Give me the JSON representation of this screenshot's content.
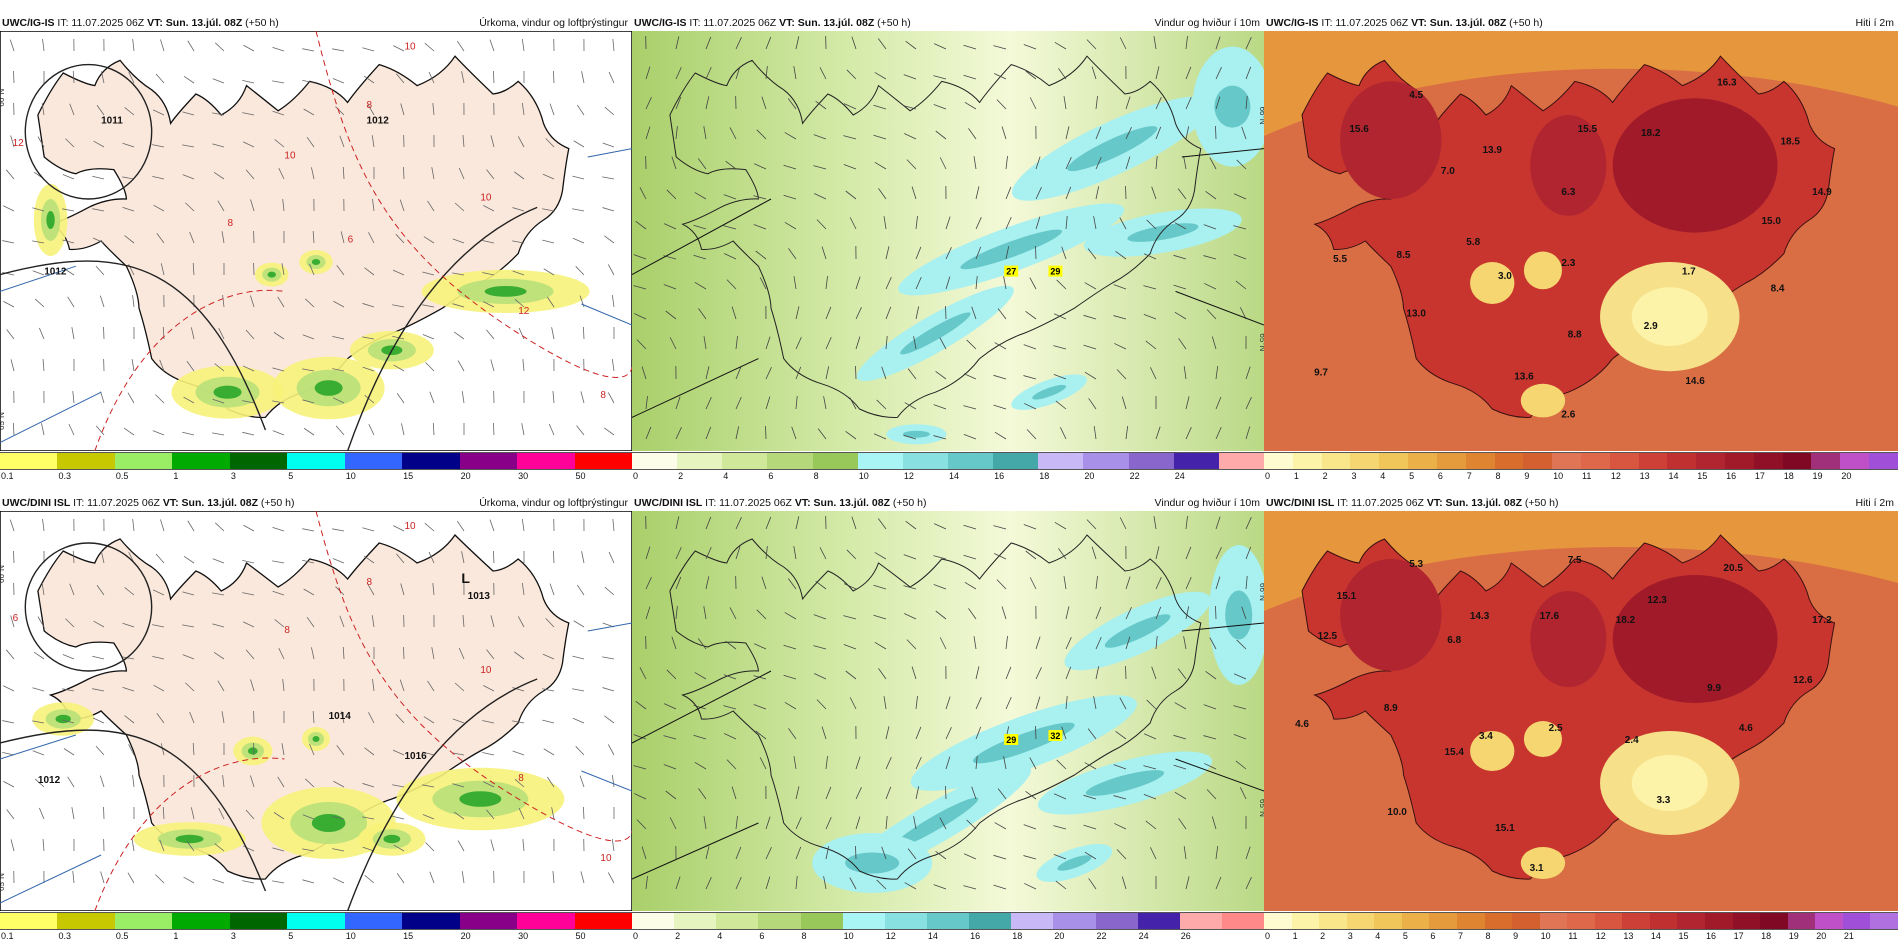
{
  "panels": [
    {
      "model": "UWC/IG-IS",
      "init": "IT: 11.07.2025 06Z",
      "valid_prefix": "VT:",
      "valid": "Sun. 13.júl. 08Z",
      "lead": "(+50 h)",
      "title": "Úrkoma, vindur og loftþrýstingur",
      "type": "precip",
      "ticks": [
        "0.1",
        "0.3",
        "0.5",
        "1",
        "3",
        "5",
        "10",
        "15",
        "20",
        "30",
        "50"
      ],
      "colors": [
        "#ffff66",
        "#c8c800",
        "#99ee66",
        "#00aa00",
        "#006600",
        "#00ffee",
        "#3366ff",
        "#000088",
        "#880088",
        "#ff0099",
        "#ff0000"
      ],
      "isobars": [
        "1011",
        "1012",
        "1012"
      ],
      "temp_contours": [
        "10",
        "8",
        "10",
        "12",
        "10",
        "12",
        "8",
        "6",
        "8"
      ],
      "lat_labels": [
        "66°N",
        "65°N"
      ]
    },
    {
      "model": "UWC/IG-IS",
      "init": "IT: 11.07.2025 06Z",
      "valid_prefix": "VT:",
      "valid": "Sun. 13.júl. 08Z",
      "lead": "(+50 h)",
      "title": "Vindur og hviður í 10m",
      "type": "wind",
      "ticks": [
        "0",
        "2",
        "4",
        "6",
        "8",
        "10",
        "12",
        "14",
        "16",
        "18",
        "20",
        "22",
        "24"
      ],
      "colors": [
        "#fbfde8",
        "#e6f5c0",
        "#cfe89a",
        "#b5d97a",
        "#98c85a",
        "#a9f5f5",
        "#88e0e0",
        "#66c8c8",
        "#44a8a8",
        "#c8b8f5",
        "#a890e8",
        "#8866cc",
        "#4422aa",
        "#ffaaaa"
      ],
      "gust_labels": [
        "27",
        "29"
      ],
      "lat_labels": [
        "66°N",
        "65°N"
      ]
    },
    {
      "model": "UWC/IG-IS",
      "init": "IT: 11.07.2025 06Z",
      "valid_prefix": "VT:",
      "valid": "Sun. 13.júl. 08Z",
      "lead": "(+50 h)",
      "title": "Hiti í 2m",
      "type": "temp",
      "ticks": [
        "0",
        "1",
        "2",
        "3",
        "4",
        "5",
        "6",
        "7",
        "8",
        "9",
        "10",
        "11",
        "12",
        "13",
        "14",
        "15",
        "16",
        "17",
        "18",
        "19",
        "20"
      ],
      "colors": [
        "#fffbd0",
        "#fdf3a8",
        "#f9e68a",
        "#f5d670",
        "#f0c55a",
        "#ebb048",
        "#e59a3c",
        "#df8430",
        "#d96e2c",
        "#d46030",
        "#e07555",
        "#e0684a",
        "#d85540",
        "#cc4038",
        "#c03030",
        "#b02530",
        "#a01a2a",
        "#901028",
        "#800824",
        "#a0307a",
        "#c050c8",
        "#a050d8"
      ],
      "values": [
        "16.3",
        "4.5",
        "15.6",
        "15.5",
        "18.2",
        "18.5",
        "13.9",
        "7.0",
        "6.3",
        "14.9",
        "15.0",
        "8.5",
        "5.8",
        "5.5",
        "3.0",
        "2.3",
        "1.7",
        "8.4",
        "13.0",
        "2.9",
        "8.8",
        "9.7",
        "13.6",
        "14.6",
        "2.6"
      ]
    },
    {
      "model": "UWC/DINI ISL",
      "init": "IT: 11.07.2025 06Z",
      "valid_prefix": "VT:",
      "valid": "Sun. 13.júl. 08Z",
      "lead": "(+50 h)",
      "title": "Úrkoma, vindur og loftþrýstingur",
      "type": "precip",
      "ticks": [
        "0.1",
        "0.3",
        "0.5",
        "1",
        "3",
        "5",
        "10",
        "15",
        "20",
        "30",
        "50"
      ],
      "colors": [
        "#ffff66",
        "#c8c800",
        "#99ee66",
        "#00aa00",
        "#006600",
        "#00ffee",
        "#3366ff",
        "#000088",
        "#880088",
        "#ff0099",
        "#ff0000"
      ],
      "isobars": [
        "1013",
        "1012",
        "1014",
        "1016"
      ],
      "low_label": "L",
      "temp_contours": [
        "10",
        "8",
        "10",
        "6",
        "8",
        "8",
        "10"
      ],
      "lat_labels": [
        "66°N",
        "65°N"
      ]
    },
    {
      "model": "UWC/DINI ISL",
      "init": "IT: 11.07.2025 06Z",
      "valid_prefix": "VT:",
      "valid": "Sun. 13.júl. 08Z",
      "lead": "(+50 h)",
      "title": "Vindur og hviður í 10m",
      "type": "wind",
      "ticks": [
        "0",
        "2",
        "4",
        "6",
        "8",
        "10",
        "12",
        "14",
        "16",
        "18",
        "20",
        "22",
        "24",
        "26"
      ],
      "colors": [
        "#fbfde8",
        "#e6f5c0",
        "#cfe89a",
        "#b5d97a",
        "#98c85a",
        "#a9f5f5",
        "#88e0e0",
        "#66c8c8",
        "#44a8a8",
        "#c8b8f5",
        "#a890e8",
        "#8866cc",
        "#4422aa",
        "#ffaaaa",
        "#ff8888"
      ],
      "gust_labels": [
        "29",
        "32"
      ],
      "lat_labels": [
        "66°N",
        "65°N"
      ]
    },
    {
      "model": "UWC/DINI ISL",
      "init": "IT: 11.07.2025 06Z",
      "valid_prefix": "VT:",
      "valid": "Sun. 13.júl. 08Z",
      "lead": "(+50 h)",
      "title": "Hiti í 2m",
      "type": "temp",
      "ticks": [
        "0",
        "1",
        "2",
        "3",
        "4",
        "5",
        "6",
        "7",
        "8",
        "9",
        "10",
        "11",
        "12",
        "13",
        "14",
        "15",
        "16",
        "17",
        "18",
        "19",
        "20",
        "21"
      ],
      "colors": [
        "#fffbd0",
        "#fdf3a8",
        "#f9e68a",
        "#f5d670",
        "#f0c55a",
        "#ebb048",
        "#e59a3c",
        "#df8430",
        "#d96e2c",
        "#d46030",
        "#e07555",
        "#e0684a",
        "#d85540",
        "#cc4038",
        "#c03030",
        "#b02530",
        "#a01a2a",
        "#901028",
        "#800824",
        "#a0307a",
        "#c050c8",
        "#a050d8",
        "#b070e0"
      ],
      "values": [
        "7.5",
        "5.3",
        "20.5",
        "15.1",
        "17.6",
        "18.2",
        "12.3",
        "17.2",
        "14.3",
        "12.5",
        "6.8",
        "12.6",
        "9.9",
        "8.9",
        "4.6",
        "3.4",
        "2.5",
        "2.4",
        "4.6",
        "15.4",
        "10.0",
        "3.3",
        "15.1",
        "3.1"
      ]
    }
  ]
}
